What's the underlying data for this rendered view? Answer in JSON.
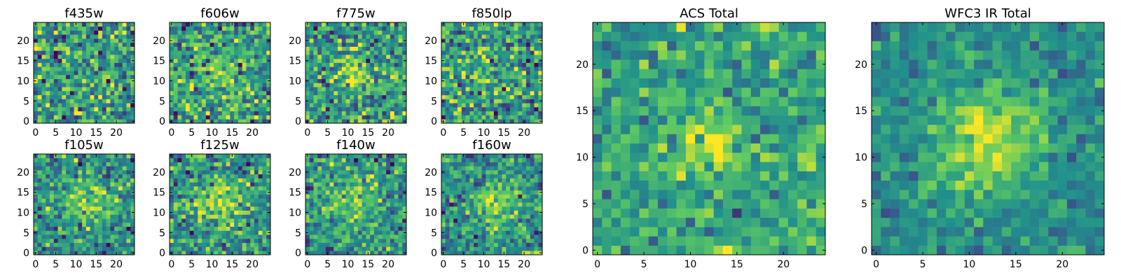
{
  "figure": {
    "colormap": "viridis",
    "colorbar_stops": [
      "#440154",
      "#3b528b",
      "#21918c",
      "#5ec962",
      "#fde725"
    ]
  },
  "chart_data": [
    {
      "type": "heatmap",
      "title": "f435w",
      "grid_size": 25,
      "value_range": [
        0,
        1
      ],
      "x_ticks": [
        0,
        5,
        10,
        15,
        20
      ],
      "y_ticks": [
        0,
        5,
        10,
        15,
        20
      ],
      "blob": {
        "center": [
          12,
          12
        ],
        "sigma": 3,
        "amplitude": 0.05
      },
      "noise": 0.22,
      "baseline": 0.55,
      "seed": 11
    },
    {
      "type": "heatmap",
      "title": "f606w",
      "grid_size": 25,
      "value_range": [
        0,
        1
      ],
      "x_ticks": [
        0,
        5,
        10,
        15,
        20
      ],
      "y_ticks": [
        0,
        5,
        10,
        15,
        20
      ],
      "blob": {
        "center": [
          12,
          12
        ],
        "sigma": 3.5,
        "amplitude": 0.2
      },
      "noise": 0.2,
      "baseline": 0.55,
      "seed": 23
    },
    {
      "type": "heatmap",
      "title": "f775w",
      "grid_size": 25,
      "value_range": [
        0,
        1
      ],
      "x_ticks": [
        0,
        5,
        10,
        15,
        20
      ],
      "y_ticks": [
        0,
        5,
        10,
        15,
        20
      ],
      "blob": {
        "center": [
          12,
          12
        ],
        "sigma": 3,
        "amplitude": 0.25
      },
      "noise": 0.2,
      "baseline": 0.55,
      "seed": 37
    },
    {
      "type": "heatmap",
      "title": "f850lp",
      "grid_size": 25,
      "value_range": [
        0,
        1
      ],
      "x_ticks": [
        0,
        5,
        10,
        15,
        20
      ],
      "y_ticks": [
        0,
        5,
        10,
        15,
        20
      ],
      "blob": {
        "center": [
          12,
          11
        ],
        "sigma": 3,
        "amplitude": 0.12
      },
      "noise": 0.22,
      "baseline": 0.55,
      "seed": 41
    },
    {
      "type": "heatmap",
      "title": "f105w",
      "grid_size": 25,
      "value_range": [
        0,
        1
      ],
      "x_ticks": [
        0,
        5,
        10,
        15,
        20
      ],
      "y_ticks": [
        0,
        5,
        10,
        15,
        20
      ],
      "blob": {
        "center": [
          13,
          13
        ],
        "sigma": 4,
        "amplitude": 0.3
      },
      "noise": 0.18,
      "baseline": 0.5,
      "seed": 53
    },
    {
      "type": "heatmap",
      "title": "f125w",
      "grid_size": 25,
      "value_range": [
        0,
        1
      ],
      "x_ticks": [
        0,
        5,
        10,
        15,
        20
      ],
      "y_ticks": [
        0,
        5,
        10,
        15,
        20
      ],
      "blob": {
        "center": [
          12,
          13
        ],
        "sigma": 4,
        "amplitude": 0.3
      },
      "noise": 0.18,
      "baseline": 0.5,
      "seed": 67
    },
    {
      "type": "heatmap",
      "title": "f140w",
      "grid_size": 25,
      "value_range": [
        0,
        1
      ],
      "x_ticks": [
        0,
        5,
        10,
        15,
        20
      ],
      "y_ticks": [
        0,
        5,
        10,
        15,
        20
      ],
      "blob": {
        "center": [
          11,
          13
        ],
        "sigma": 4.5,
        "amplitude": 0.3
      },
      "noise": 0.18,
      "baseline": 0.5,
      "seed": 71
    },
    {
      "type": "heatmap",
      "title": "f160w",
      "grid_size": 25,
      "value_range": [
        0,
        1
      ],
      "x_ticks": [
        0,
        5,
        10,
        15,
        20
      ],
      "y_ticks": [
        0,
        5,
        10,
        15,
        20
      ],
      "blob": {
        "center": [
          13,
          12
        ],
        "sigma": 3.5,
        "amplitude": 0.35
      },
      "noise": 0.17,
      "baseline": 0.5,
      "seed": 83
    },
    {
      "type": "heatmap",
      "title": "ACS Total",
      "grid_size": 25,
      "value_range": [
        0,
        1
      ],
      "x_ticks": [
        0,
        5,
        10,
        15,
        20
      ],
      "y_ticks": [
        0,
        5,
        10,
        15,
        20
      ],
      "blob": {
        "center": [
          12,
          11
        ],
        "sigma": 2.5,
        "amplitude": 0.3
      },
      "noise": 0.14,
      "baseline": 0.58,
      "seed": 97
    },
    {
      "type": "heatmap",
      "title": "WFC3 IR Total",
      "grid_size": 25,
      "value_range": [
        0,
        1
      ],
      "x_ticks": [
        0,
        5,
        10,
        15,
        20
      ],
      "y_ticks": [
        0,
        5,
        10,
        15,
        20
      ],
      "blob": {
        "center": [
          12,
          12
        ],
        "sigma": 4,
        "amplitude": 0.45
      },
      "noise": 0.1,
      "baseline": 0.48,
      "seed": 101
    }
  ]
}
